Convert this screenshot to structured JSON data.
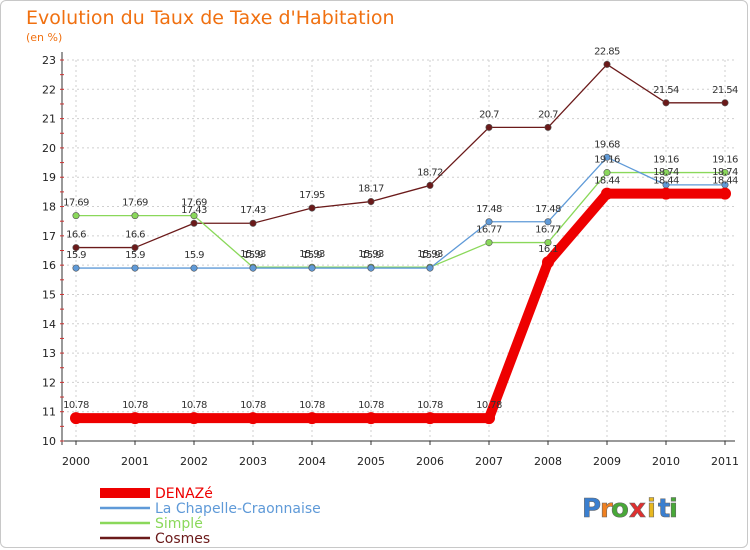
{
  "chart_data": {
    "type": "line",
    "title": "Evolution du Taux de Taxe d'Habitation",
    "subtitle": "(en %)",
    "xlabel": "",
    "ylabel": "",
    "x": [
      "2000",
      "2001",
      "2002",
      "2003",
      "2004",
      "2005",
      "2006",
      "2007",
      "2008",
      "2009",
      "2010",
      "2011"
    ],
    "ylim": [
      10,
      23
    ],
    "yticks": [
      "10",
      "11",
      "12",
      "13",
      "14",
      "15",
      "16",
      "17",
      "18",
      "19",
      "20",
      "21",
      "22",
      "23"
    ],
    "grid": true,
    "legend_position": "bottom-left",
    "series": [
      {
        "name": "DENAZé",
        "color": "#ee0000",
        "values": [
          10.78,
          10.78,
          10.78,
          10.78,
          10.78,
          10.78,
          10.78,
          10.78,
          16.1,
          18.44,
          18.44,
          18.44
        ],
        "labels": [
          "10.78",
          "10.78",
          "10.78",
          "10.78",
          "10.78",
          "10.78",
          "10.78",
          "10.78",
          "16.1",
          "18.44",
          "18.44",
          "18.44"
        ]
      },
      {
        "name": "La Chapelle-Craonnaise",
        "color": "#5f9ad8",
        "values": [
          15.9,
          15.9,
          15.9,
          15.9,
          15.9,
          15.9,
          15.9,
          17.48,
          17.48,
          19.68,
          18.74,
          18.74
        ],
        "labels": [
          "15.9",
          "15.9",
          "15.9",
          "15.9",
          "15.9",
          "15.9",
          "15.9",
          "17.48",
          "17.48",
          "19.68",
          "18.74",
          "18.74"
        ]
      },
      {
        "name": "Simplé",
        "color": "#8ad85a",
        "values": [
          17.69,
          17.69,
          17.69,
          15.93,
          15.93,
          15.93,
          15.93,
          16.77,
          16.77,
          19.16,
          19.16,
          19.16
        ],
        "labels": [
          "17.69",
          "17.69",
          "17.69",
          "15.93",
          "15.93",
          "15.93",
          "15.93",
          "16.77",
          "16.77",
          "19.16",
          "19.16",
          "19.16"
        ]
      },
      {
        "name": "Cosmes",
        "color": "#6b1a1a",
        "values": [
          16.6,
          16.6,
          17.43,
          17.43,
          17.95,
          18.17,
          18.72,
          20.7,
          20.7,
          22.85,
          21.54,
          21.54
        ],
        "labels": [
          "16.6",
          "16.6",
          "17.43",
          "17.43",
          "17.95",
          "18.17",
          "18.72",
          "20.7",
          "20.7",
          "22.85",
          "21.54",
          "21.54"
        ]
      }
    ]
  },
  "brand": {
    "letters": [
      "P",
      "r",
      "o",
      "x",
      "i",
      "t",
      "i"
    ],
    "colors": [
      "#3a7fd0",
      "#f08020",
      "#48a838",
      "#e03030",
      "#e8b820",
      "#3a7fd0",
      "#48a838"
    ]
  }
}
